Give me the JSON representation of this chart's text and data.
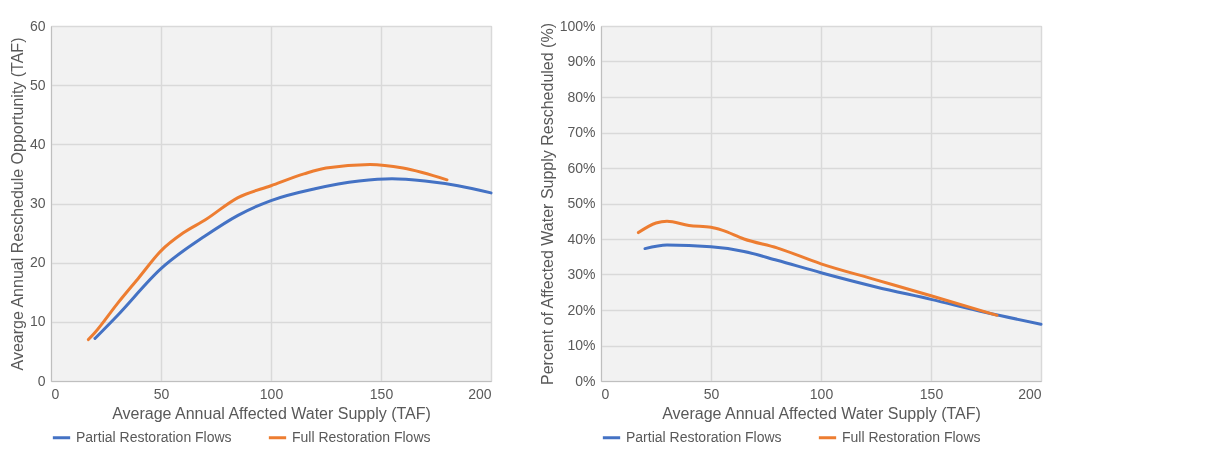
{
  "chart_data": [
    {
      "type": "line",
      "xlabel": "Average Annual Affected Water Supply (TAF)",
      "ylabel": "Avearge Annual Reschedule Opportunity (TAF)",
      "xlim": [
        0,
        200
      ],
      "xticks": [
        0,
        50,
        100,
        150,
        200
      ],
      "ylim": [
        0,
        60
      ],
      "yticks": [
        0,
        10,
        20,
        30,
        40,
        50,
        60
      ],
      "grid": true,
      "legend": "bottom",
      "series": [
        {
          "name": "Partial Restoration Flows",
          "color": "#4472c4",
          "x": [
            20,
            30,
            50,
            70,
            85,
            100,
            120,
            140,
            155,
            170,
            185,
            200
          ],
          "values": [
            7.2,
            11,
            19,
            24.5,
            28,
            30.5,
            32.5,
            33.8,
            34.2,
            33.8,
            33,
            31.8
          ]
        },
        {
          "name": "Full Restoration Flows",
          "color": "#ed7d31",
          "x": [
            17,
            20,
            30,
            40,
            50,
            60,
            70,
            85,
            100,
            115,
            125,
            145,
            160,
            180
          ],
          "values": [
            7,
            8.2,
            13,
            17.5,
            22,
            25,
            27.2,
            31,
            33,
            35,
            36,
            36.6,
            36,
            34
          ]
        }
      ]
    },
    {
      "type": "line",
      "xlabel": "Average Annual Affected Water Supply (TAF)",
      "ylabel": "Percent of Affected Water Supply Rescheduled  (%)",
      "xlim": [
        0,
        200
      ],
      "xticks": [
        0,
        50,
        100,
        150,
        200
      ],
      "ylim": [
        0,
        100
      ],
      "yticks": [
        {
          "value": 0,
          "label": "0%"
        },
        {
          "value": 10,
          "label": "10%"
        },
        {
          "value": 20,
          "label": "20%"
        },
        {
          "value": 30,
          "label": "30%"
        },
        {
          "value": 40,
          "label": "40%"
        },
        {
          "value": 50,
          "label": "50%"
        },
        {
          "value": 60,
          "label": "60%"
        },
        {
          "value": 70,
          "label": "70%"
        },
        {
          "value": 80,
          "label": "80%"
        },
        {
          "value": 90,
          "label": "90%"
        },
        {
          "value": 100,
          "label": "100%"
        }
      ],
      "grid": true,
      "legend": "bottom",
      "series": [
        {
          "name": "Partial Restoration Flows",
          "color": "#4472c4",
          "x": [
            20,
            30,
            50,
            65,
            80,
            100,
            125,
            150,
            175,
            200
          ],
          "values": [
            37.3,
            38.3,
            37.8,
            36.5,
            34,
            30.5,
            26.5,
            23,
            19.3,
            16
          ]
        },
        {
          "name": "Full Restoration Flows",
          "color": "#ed7d31",
          "x": [
            17,
            25,
            30,
            40,
            50,
            55,
            65,
            80,
            100,
            125,
            150,
            180
          ],
          "values": [
            41.8,
            44.5,
            45,
            43.8,
            43.3,
            42.5,
            40,
            37.5,
            33,
            28.5,
            24,
            18.5
          ]
        }
      ]
    }
  ]
}
